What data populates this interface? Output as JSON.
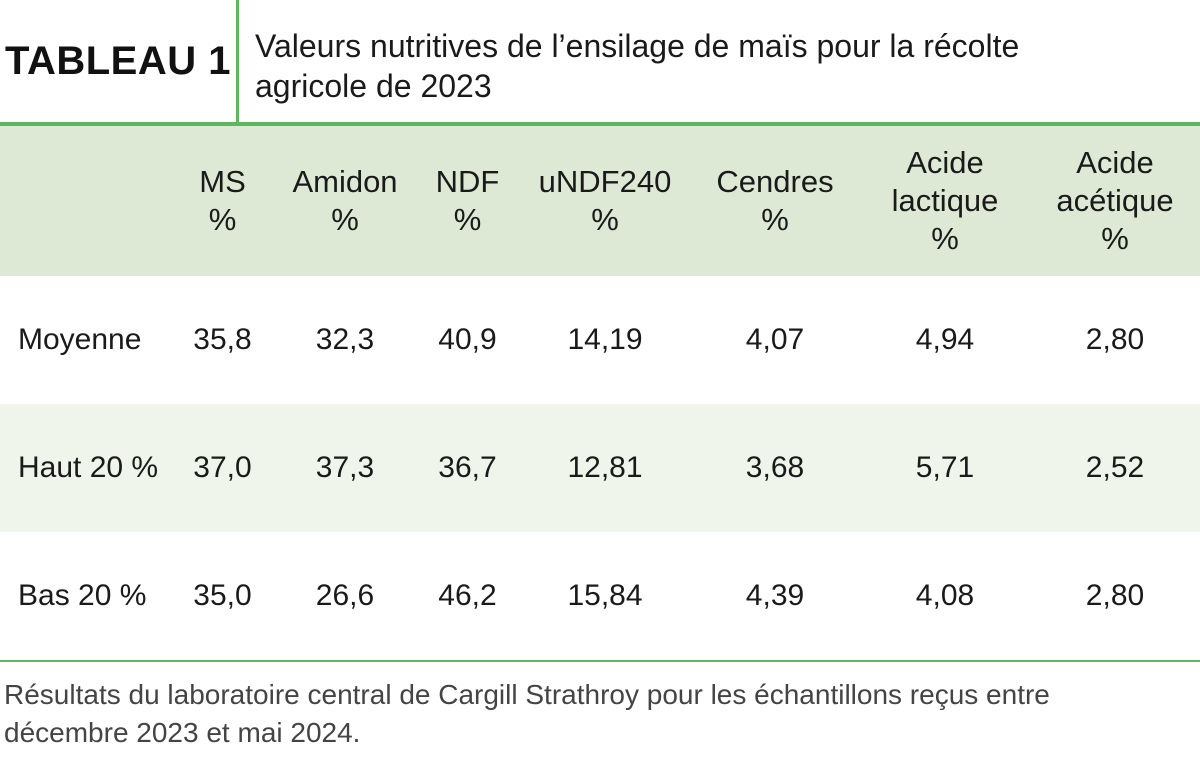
{
  "header": {
    "label": "TABLEAU 1",
    "title_line1": "Valeurs nutritives de l’ensilage de maïs pour la récolte",
    "title_line2": "agricole de 2023"
  },
  "table": {
    "columns": [
      {
        "lines": [
          ""
        ]
      },
      {
        "lines": [
          "MS",
          "%"
        ]
      },
      {
        "lines": [
          "Amidon",
          "%"
        ]
      },
      {
        "lines": [
          "NDF",
          "%"
        ]
      },
      {
        "lines": [
          "uNDF240",
          "%"
        ]
      },
      {
        "lines": [
          "Cendres",
          "%"
        ]
      },
      {
        "lines": [
          "Acide",
          "lactique",
          "%"
        ]
      },
      {
        "lines": [
          "Acide",
          "acétique",
          "%"
        ]
      }
    ],
    "rows": [
      {
        "label": "Moyenne",
        "values": [
          "35,8",
          "32,3",
          "40,9",
          "14,19",
          "4,07",
          "4,94",
          "2,80"
        ]
      },
      {
        "label": "Haut 20 %",
        "values": [
          "37,0",
          "37,3",
          "36,7",
          "12,81",
          "3,68",
          "5,71",
          "2,52"
        ]
      },
      {
        "label": "Bas 20 %",
        "values": [
          "35,0",
          "26,6",
          "46,2",
          "15,84",
          "4,39",
          "4,08",
          "2,80"
        ]
      }
    ]
  },
  "footnote": {
    "line1": "Résultats du laboratoire central de Cargill Strathroy pour les échantillons reçus entre",
    "line2": "décembre 2023 et mai 2024."
  },
  "colors": {
    "accent_green": "#5db85c",
    "header_bg": "#dde9d5",
    "stripe_bg": "#eff5ea"
  }
}
